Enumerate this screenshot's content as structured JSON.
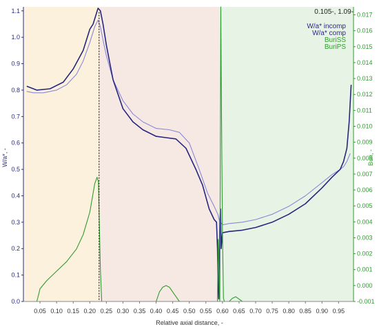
{
  "chart_data": {
    "type": "line",
    "xlabel": "Relative axial distance, -",
    "ylabel_left": "W/a*, -",
    "ylabel_right": "Buri, -",
    "xlim": [
      0.0,
      0.995
    ],
    "ylim_left": [
      0.0,
      1.115
    ],
    "ylim_right": [
      -0.001,
      0.0175
    ],
    "xticks": [
      "0.05",
      "0.10",
      "0.15",
      "0.20",
      "0.25",
      "0.30",
      "0.35",
      "0.40",
      "0.45",
      "0.50",
      "0.55",
      "0.60",
      "0.65",
      "0.70",
      "0.75",
      "0.80",
      "0.85",
      "0.90",
      "0.95"
    ],
    "yticks_left": [
      "0.0",
      "0.1",
      "0.2",
      "0.3",
      "0.4",
      "0.5",
      "0.6",
      "0.7",
      "0.8",
      "0.9",
      "1.0",
      "1.1"
    ],
    "yticks_right": [
      "-0.001",
      "0.000",
      "0.001",
      "0.002",
      "0.003",
      "0.004",
      "0.005",
      "0.006",
      "0.007",
      "0.008",
      "0.009",
      "0.010",
      "0.011",
      "0.012",
      "0.013",
      "0.014",
      "0.015",
      "0.016",
      "0.017"
    ],
    "cursor_readout": "0.105-, 1.09-",
    "cursor_x": 0.228,
    "regions": [
      {
        "x_start": 0.0,
        "x_end": 0.228,
        "color": "#fbf1dd"
      },
      {
        "x_start": 0.228,
        "x_end": 0.59,
        "color": "#f6e8e2"
      },
      {
        "x_start": 0.59,
        "x_end": 0.995,
        "color": "#e7f3e4"
      }
    ],
    "series": [
      {
        "name": "W/a* incomp",
        "axis": "left",
        "color": "#8a88d6",
        "x": [
          0.01,
          0.03,
          0.06,
          0.1,
          0.13,
          0.16,
          0.18,
          0.2,
          0.215,
          0.225,
          0.232,
          0.24,
          0.25,
          0.27,
          0.3,
          0.33,
          0.36,
          0.4,
          0.44,
          0.47,
          0.5,
          0.53,
          0.555,
          0.575,
          0.586,
          0.59,
          0.593,
          0.598,
          0.6,
          0.62,
          0.66,
          0.7,
          0.75,
          0.8,
          0.85,
          0.9,
          0.93,
          0.955,
          0.965,
          0.975,
          0.985
        ],
        "y": [
          0.795,
          0.79,
          0.79,
          0.8,
          0.82,
          0.86,
          0.91,
          0.98,
          1.04,
          1.065,
          1.04,
          0.99,
          0.93,
          0.84,
          0.76,
          0.71,
          0.68,
          0.655,
          0.65,
          0.64,
          0.6,
          0.5,
          0.41,
          0.36,
          0.33,
          0.31,
          0.3,
          0.295,
          0.29,
          0.295,
          0.3,
          0.31,
          0.33,
          0.36,
          0.4,
          0.45,
          0.48,
          0.5,
          0.51,
          0.53,
          0.56
        ]
      },
      {
        "name": "W/a* comp",
        "axis": "left",
        "color": "#26267e",
        "x": [
          0.01,
          0.02,
          0.04,
          0.08,
          0.12,
          0.15,
          0.18,
          0.2,
          0.21,
          0.225,
          0.232,
          0.24,
          0.25,
          0.27,
          0.3,
          0.33,
          0.36,
          0.4,
          0.43,
          0.46,
          0.49,
          0.52,
          0.54,
          0.56,
          0.575,
          0.582,
          0.585,
          0.587,
          0.589,
          0.592,
          0.594,
          0.596,
          0.6,
          0.62,
          0.66,
          0.7,
          0.75,
          0.8,
          0.85,
          0.9,
          0.93,
          0.955,
          0.965,
          0.975,
          0.982,
          0.988
        ],
        "y": [
          0.815,
          0.81,
          0.8,
          0.805,
          0.83,
          0.88,
          0.95,
          1.03,
          1.05,
          1.11,
          1.1,
          1.05,
          0.97,
          0.84,
          0.73,
          0.68,
          0.65,
          0.625,
          0.62,
          0.615,
          0.58,
          0.5,
          0.44,
          0.35,
          0.31,
          0.3,
          0.2,
          0.05,
          0.01,
          0.3,
          0.35,
          0.2,
          0.26,
          0.265,
          0.27,
          0.28,
          0.3,
          0.33,
          0.37,
          0.43,
          0.47,
          0.5,
          0.53,
          0.58,
          0.68,
          0.82
        ]
      },
      {
        "name": "BuriSS",
        "axis": "right",
        "color": "#2e9b2e",
        "x": [
          0.01,
          0.04,
          0.043,
          0.05,
          0.07,
          0.1,
          0.13,
          0.16,
          0.18,
          0.2,
          0.21,
          0.215,
          0.222,
          0.226,
          0.232,
          0.236,
          0.26,
          0.3,
          0.35,
          0.4,
          0.41,
          0.42,
          0.43,
          0.44,
          0.45,
          0.47,
          0.5,
          0.55,
          0.58,
          0.585,
          0.587,
          0.59,
          0.592,
          0.595,
          0.597,
          0.6,
          0.603,
          0.606,
          0.61,
          0.62,
          0.63,
          0.64,
          0.66,
          0.7,
          0.8,
          0.9,
          0.995
        ],
        "y": [
          -0.001,
          -0.001,
          -0.0008,
          -0.0002,
          0.0003,
          0.0009,
          0.0015,
          0.0023,
          0.0032,
          0.0046,
          0.0058,
          0.0064,
          0.0068,
          0.0065,
          0.001,
          -0.001,
          -0.001,
          -0.001,
          -0.001,
          -0.001,
          -0.0004,
          -0.0001,
          0.0,
          -0.0001,
          -0.0004,
          -0.001,
          -0.001,
          -0.001,
          -0.001,
          -0.001,
          0.0029,
          0.0003,
          -0.001,
          0.0175,
          0.011,
          0.0035,
          -0.0008,
          -0.001,
          -0.001,
          -0.001,
          -0.0008,
          -0.0007,
          -0.001,
          -0.001,
          -0.001,
          -0.001,
          -0.001
        ]
      },
      {
        "name": "BuriPS",
        "axis": "right",
        "color": "#7fc97f",
        "x": [],
        "y": []
      }
    ],
    "grid": false,
    "legend_position": "top-right"
  }
}
